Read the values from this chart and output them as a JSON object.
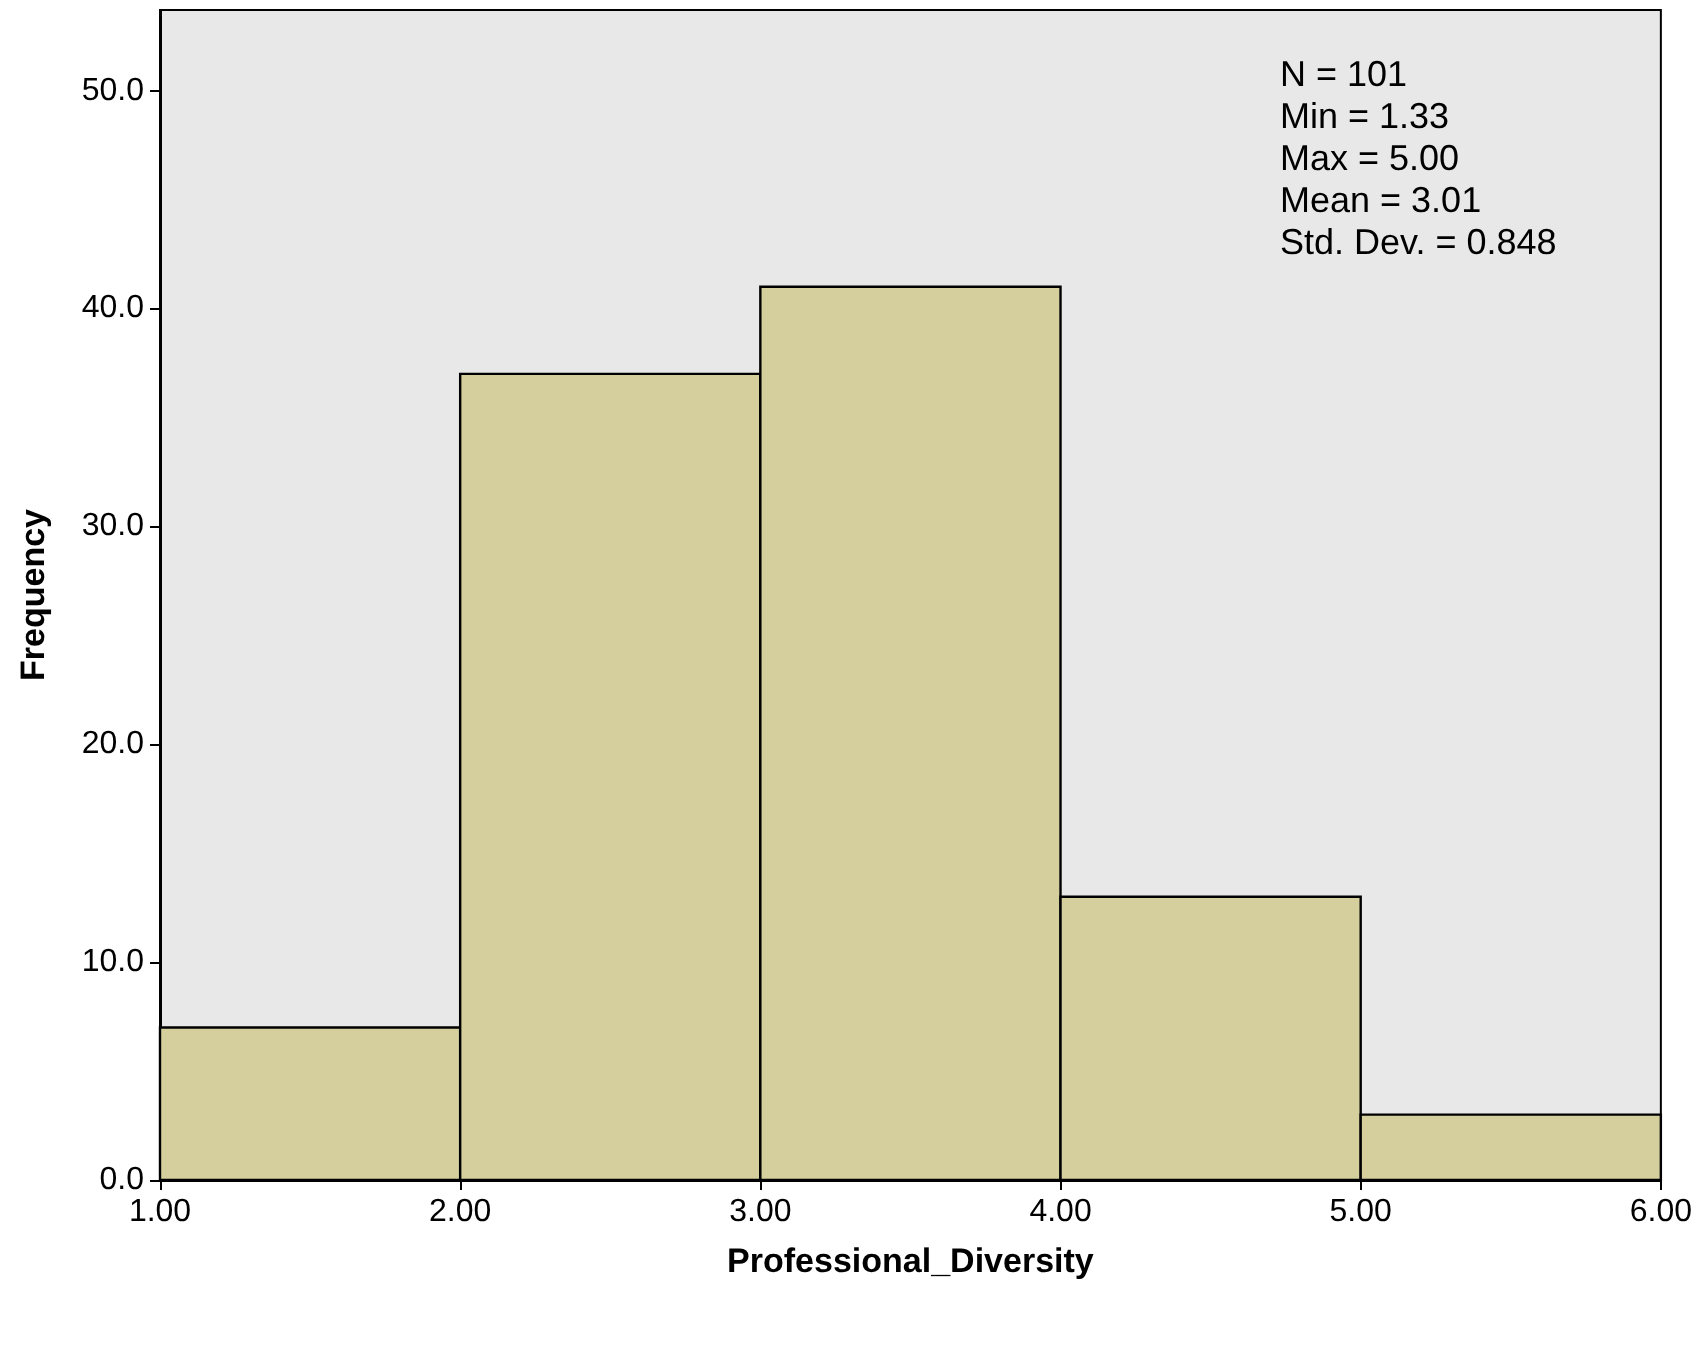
{
  "chart_data": {
    "type": "histogram",
    "xlabel": "Professional_Diversity",
    "ylabel": "Frequency",
    "bins": [
      1,
      2,
      3,
      4,
      5,
      6
    ],
    "values": [
      7,
      37,
      41,
      13,
      3
    ],
    "color": "#d4cf9c",
    "xlim": [
      1,
      6
    ],
    "xticks": [
      {
        "value": 1,
        "label": "1.00"
      },
      {
        "value": 2,
        "label": "2.00"
      },
      {
        "value": 3,
        "label": "3.00"
      },
      {
        "value": 4,
        "label": "4.00"
      },
      {
        "value": 5,
        "label": "5.00"
      },
      {
        "value": 6,
        "label": "6.00"
      }
    ],
    "ylim": [
      0,
      53.7
    ],
    "yticks": [
      {
        "value": 0,
        "label": "0.0"
      },
      {
        "value": 10,
        "label": "10.0"
      },
      {
        "value": 20,
        "label": "20.0"
      },
      {
        "value": 30,
        "label": "30.0"
      },
      {
        "value": 40,
        "label": "40.0"
      },
      {
        "value": 50,
        "label": "50.0"
      }
    ],
    "grid": false,
    "annotations": [
      "N = 101",
      "Min = 1.33",
      "Max = 5.00",
      "Mean = 3.01",
      "Std. Dev. = 0.848"
    ]
  }
}
